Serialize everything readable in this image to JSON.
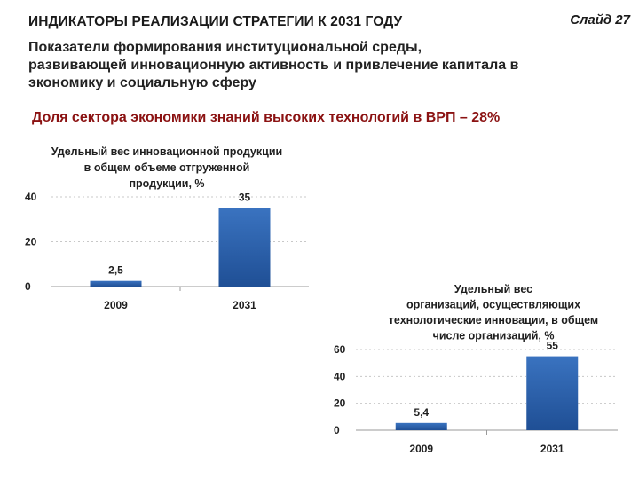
{
  "slide": {
    "title": "ИНДИКАТОРЫ РЕАЛИЗАЦИИ СТРАТЕГИИ К 2031 ГОДУ",
    "number": "Слайд 27",
    "subtitle_lines": [
      "Показатели формирования институциональной среды,",
      "развивающей инновационную активность и привлечение капитала в",
      "экономику и социальную сферу"
    ],
    "highlight": "Доля сектора экономики знаний высоких технологий в ВРП – 28%",
    "highlight_color": "#8b1212"
  },
  "chart_data": [
    {
      "type": "bar",
      "title_lines": [
        "Удельный вес инновационной продукции",
        "в общем объеме отгруженной",
        "продукции, %"
      ],
      "categories": [
        "2009",
        "2031"
      ],
      "values": [
        2.5,
        35
      ],
      "value_labels": [
        "2,5",
        "35"
      ],
      "yticks": [
        "40",
        "20",
        "0"
      ],
      "ylim": [
        0,
        40
      ],
      "grid": true,
      "legend": "none",
      "bar_color": "#3a73c0"
    },
    {
      "type": "bar",
      "title_lines": [
        "Удельный вес",
        "организаций, осуществляющих",
        "технологические инновации, в общем",
        "числе организаций, %"
      ],
      "categories": [
        "2009",
        "2031"
      ],
      "values": [
        5.4,
        55
      ],
      "value_labels": [
        "5,4",
        "55"
      ],
      "yticks": [
        "60",
        "40",
        "20",
        "0"
      ],
      "ylim": [
        0,
        60
      ],
      "grid": true,
      "legend": "none",
      "bar_color": "#3a73c0"
    }
  ]
}
